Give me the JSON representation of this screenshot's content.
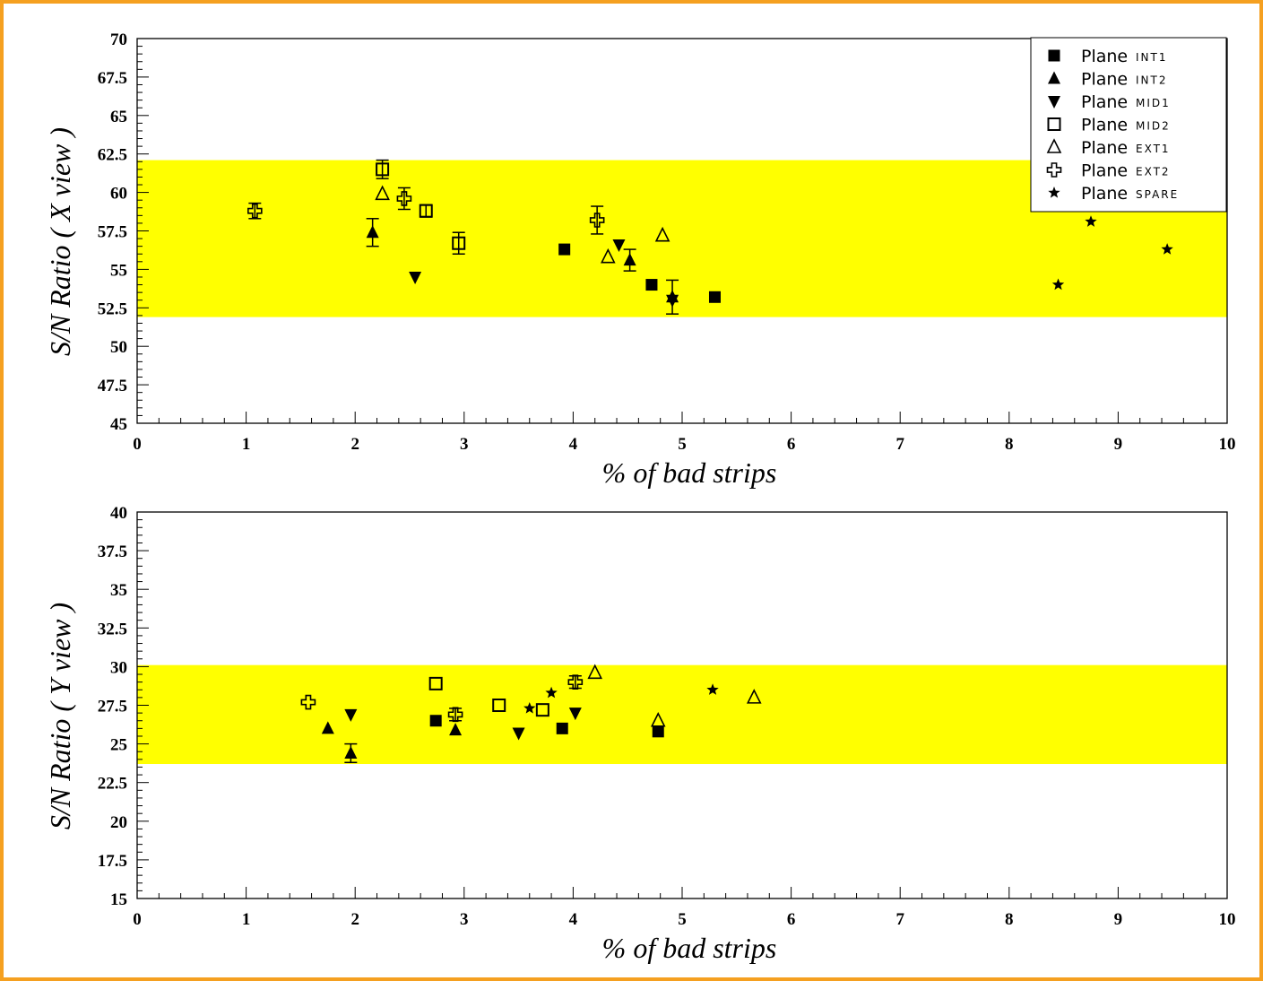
{
  "colors": {
    "frame_border": "#f5a020",
    "band": "#ffff00",
    "marker": "#000000",
    "background": "#ffffff"
  },
  "chart_data": [
    {
      "type": "scatter",
      "xlabel": "% of bad strips",
      "ylabel": "S/N Ratio ( X view )",
      "xlim": [
        0,
        10
      ],
      "ylim": [
        45,
        70
      ],
      "x_ticks": [
        "0",
        "1",
        "2",
        "3",
        "4",
        "5",
        "6",
        "7",
        "8",
        "9",
        "10"
      ],
      "y_ticks": [
        "45",
        "47.5",
        "50",
        "52.5",
        "55",
        "57.5",
        "60",
        "62.5",
        "65",
        "67.5",
        "70"
      ],
      "band": {
        "y_min": 51.9,
        "y_max": 62.1
      },
      "legend_position": "top-right",
      "series": [
        {
          "name": "Plane",
          "tag": "INT1",
          "marker": "square-filled",
          "points": [
            {
              "x": 3.92,
              "y": 56.3
            },
            {
              "x": 4.72,
              "y": 54.0
            },
            {
              "x": 5.3,
              "y": 53.2
            }
          ]
        },
        {
          "name": "Plane",
          "tag": "INT2",
          "marker": "triangle-up-filled",
          "points": [
            {
              "x": 2.16,
              "y": 57.4,
              "err": 0.9
            },
            {
              "x": 4.52,
              "y": 55.6,
              "err": 0.7
            },
            {
              "x": 4.91,
              "y": 53.2,
              "err": 1.1
            }
          ]
        },
        {
          "name": "Plane",
          "tag": "MID1",
          "marker": "triangle-down-filled",
          "points": [
            {
              "x": 2.55,
              "y": 54.5
            },
            {
              "x": 4.42,
              "y": 56.6
            },
            {
              "x": 4.91,
              "y": 53.0
            }
          ]
        },
        {
          "name": "Plane",
          "tag": "MID2",
          "marker": "square-open",
          "points": [
            {
              "x": 2.25,
              "y": 61.5,
              "err": 0.6
            },
            {
              "x": 2.65,
              "y": 58.8,
              "err": 0.4
            },
            {
              "x": 2.95,
              "y": 56.7,
              "err": 0.7
            }
          ]
        },
        {
          "name": "Plane",
          "tag": "EXT1",
          "marker": "triangle-up-open",
          "points": [
            {
              "x": 2.25,
              "y": 59.9
            },
            {
              "x": 4.32,
              "y": 55.8
            },
            {
              "x": 4.82,
              "y": 57.2
            }
          ]
        },
        {
          "name": "Plane",
          "tag": "EXT2",
          "marker": "cross-open",
          "points": [
            {
              "x": 1.08,
              "y": 58.8,
              "err": 0.5
            },
            {
              "x": 2.45,
              "y": 59.6,
              "err": 0.7
            },
            {
              "x": 4.22,
              "y": 58.2,
              "err": 0.9
            }
          ]
        },
        {
          "name": "Plane",
          "tag": "SPARE",
          "marker": "star",
          "points": [
            {
              "x": 8.45,
              "y": 54.0
            },
            {
              "x": 8.75,
              "y": 58.1
            },
            {
              "x": 9.45,
              "y": 56.3
            }
          ]
        }
      ]
    },
    {
      "type": "scatter",
      "xlabel": "% of bad strips",
      "ylabel": "S/N Ratio ( Y view )",
      "xlim": [
        0,
        10
      ],
      "ylim": [
        15,
        40
      ],
      "x_ticks": [
        "0",
        "1",
        "2",
        "3",
        "4",
        "5",
        "6",
        "7",
        "8",
        "9",
        "10"
      ],
      "y_ticks": [
        "15",
        "17.5",
        "20",
        "22.5",
        "25",
        "27.5",
        "30",
        "32.5",
        "35",
        "37.5",
        "40"
      ],
      "band": {
        "y_min": 23.7,
        "y_max": 30.1
      },
      "series": [
        {
          "name": "Plane",
          "tag": "INT1",
          "marker": "square-filled",
          "points": [
            {
              "x": 2.74,
              "y": 26.5
            },
            {
              "x": 3.9,
              "y": 26.0
            },
            {
              "x": 4.78,
              "y": 25.8
            }
          ]
        },
        {
          "name": "Plane",
          "tag": "INT2",
          "marker": "triangle-up-filled",
          "points": [
            {
              "x": 1.75,
              "y": 26.0
            },
            {
              "x": 1.96,
              "y": 24.4,
              "err": 0.6
            },
            {
              "x": 2.92,
              "y": 25.9
            }
          ]
        },
        {
          "name": "Plane",
          "tag": "MID1",
          "marker": "triangle-down-filled",
          "points": [
            {
              "x": 1.96,
              "y": 26.9
            },
            {
              "x": 3.5,
              "y": 25.7
            },
            {
              "x": 4.02,
              "y": 27.0
            }
          ]
        },
        {
          "name": "Plane",
          "tag": "MID2",
          "marker": "square-open",
          "points": [
            {
              "x": 2.74,
              "y": 28.9
            },
            {
              "x": 3.32,
              "y": 27.5
            },
            {
              "x": 3.72,
              "y": 27.2
            }
          ]
        },
        {
          "name": "Plane",
          "tag": "EXT1",
          "marker": "triangle-up-open",
          "points": [
            {
              "x": 4.2,
              "y": 29.6
            },
            {
              "x": 4.78,
              "y": 26.5
            },
            {
              "x": 5.66,
              "y": 28.0
            }
          ]
        },
        {
          "name": "Plane",
          "tag": "EXT2",
          "marker": "cross-open",
          "points": [
            {
              "x": 1.57,
              "y": 27.7
            },
            {
              "x": 2.92,
              "y": 26.9,
              "err": 0.4
            },
            {
              "x": 4.02,
              "y": 29.0,
              "err": 0.4
            }
          ]
        },
        {
          "name": "Plane",
          "tag": "SPARE",
          "marker": "star",
          "points": [
            {
              "x": 3.6,
              "y": 27.3
            },
            {
              "x": 3.8,
              "y": 28.3
            },
            {
              "x": 5.28,
              "y": 28.5
            }
          ]
        }
      ]
    }
  ]
}
